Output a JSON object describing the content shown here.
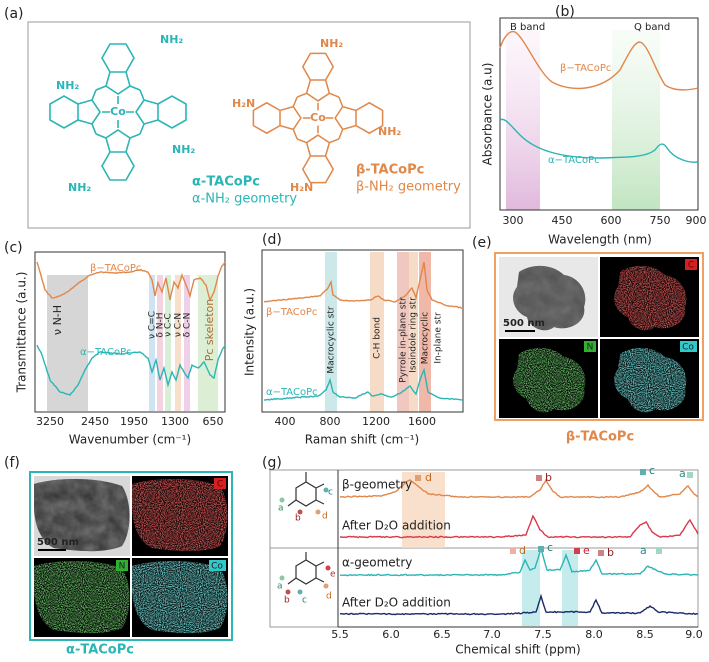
{
  "a": {
    "label": "(a)",
    "alpha": {
      "amines": [
        "NH₂",
        "NH₂",
        "NH₂",
        "NH₂"
      ],
      "metal": "Co",
      "name": "α-TACoPc",
      "geometry": "α-NH₂ geometry"
    },
    "beta": {
      "amines": [
        "NH₂",
        "H₂N",
        "NH₂",
        "H₂N"
      ],
      "metal": "Co",
      "name": "β-TACoPc",
      "geometry": "β-NH₂ geometry"
    }
  },
  "b": {
    "label": "(b)",
    "xlabel": "Wavelength (nm)",
    "ylabel": "Absorbance (a.u)",
    "xticks": [
      "300",
      "450",
      "600",
      "750",
      "900"
    ],
    "bands": [
      "B band",
      "Q band"
    ],
    "traces": [
      "β−TACoPc",
      "α−TACoPc"
    ]
  },
  "c": {
    "label": "(c)",
    "xlabel": "Wavenumber (cm⁻¹)",
    "ylabel": "Transmittance (a.u.)",
    "xticks": [
      "3250",
      "2450",
      "1950",
      "1300",
      "650"
    ],
    "traces": [
      "β−TACoPc",
      "α−TACoPc"
    ],
    "assignments": [
      "ν N-H",
      "ν C=C",
      "δ N-H",
      "ν C-C",
      "ν C-N",
      "δ C-N",
      "Pc skeleton"
    ]
  },
  "d": {
    "label": "(d)",
    "xlabel": "Raman shift (cm⁻¹)",
    "ylabel": "Intensity (a.u.)",
    "xticks": [
      "400",
      "800",
      "1200",
      "1600"
    ],
    "traces": [
      "β−TACoPc",
      "α−TACoPc"
    ],
    "assignments": [
      "Macrocyclic str",
      "C-H bond",
      "Pyrrole in-plane str",
      "Isoindole ring str",
      "Macrocyclic",
      "In-plane str"
    ]
  },
  "e": {
    "label": "(e)",
    "scale": "500 nm",
    "elements": [
      "C",
      "N",
      "Co"
    ],
    "caption": "β-TACoPc"
  },
  "f": {
    "label": "(f)",
    "scale": "500 nm",
    "elements": [
      "C",
      "N",
      "Co"
    ],
    "caption": "α-TACoPc"
  },
  "g": {
    "label": "(g)",
    "xlabel": "Chemical shift (ppm)",
    "xticks": [
      "5.5",
      "6.0",
      "6.5",
      "7.0",
      "7.5",
      "8.0",
      "8.5",
      "9.0"
    ],
    "traces": [
      "β-geometry",
      "After D₂O addition",
      "α-geometry",
      "After D₂O addition"
    ],
    "beta_peaks": [
      "d",
      "b",
      "c",
      "a"
    ],
    "alpha_peaks": [
      "d",
      "c",
      "e",
      "b",
      "a"
    ],
    "beta_structure": [
      "a",
      "c",
      "b",
      "d"
    ],
    "alpha_structure": [
      "a",
      "c",
      "b",
      "d",
      "e"
    ]
  }
}
